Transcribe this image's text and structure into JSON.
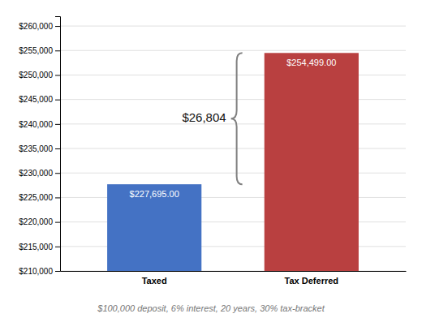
{
  "chart_data": {
    "type": "bar",
    "subtitle": "$100,000 deposit, 6% interest, 20 years, 30% tax-bracket",
    "categories": [
      "Taxed",
      "Tax Deferred"
    ],
    "values": [
      227695,
      254499
    ],
    "value_labels": [
      "$227,695.00",
      "$254,499.00"
    ],
    "data_labels": true,
    "colors": [
      "#4472C4",
      "#B94040"
    ],
    "annotations": [
      "$26,804"
    ],
    "ylim": [
      210000,
      262000
    ],
    "yticks": [
      {
        "value": 210000,
        "label": "$210,000"
      },
      {
        "value": 215000,
        "label": "$215,000"
      },
      {
        "value": 220000,
        "label": "$220,000"
      },
      {
        "value": 225000,
        "label": "$225,000"
      },
      {
        "value": 230000,
        "label": "$230,000"
      },
      {
        "value": 235000,
        "label": "$235,000"
      },
      {
        "value": 240000,
        "label": "$240,000"
      },
      {
        "value": 245000,
        "label": "$245,000"
      },
      {
        "value": 250000,
        "label": "$250,000"
      },
      {
        "value": 255000,
        "label": "$255,000"
      },
      {
        "value": 260000,
        "label": "$260,000"
      }
    ],
    "grid": true
  }
}
